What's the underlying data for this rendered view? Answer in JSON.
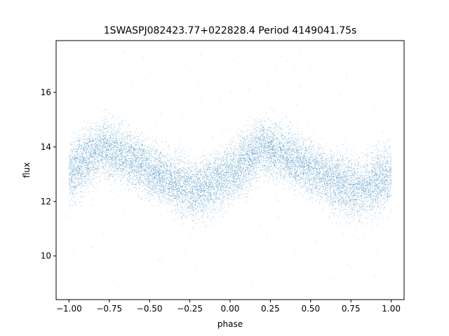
{
  "chart_data": {
    "type": "scatter",
    "title": "1SWASPJ082423.77+022828.4 Period 4149041.75s",
    "xlabel": "phase",
    "ylabel": "flux",
    "xlim": [
      -1.08,
      1.08
    ],
    "ylim": [
      8.4,
      17.9
    ],
    "x_ticks": [
      -1.0,
      -0.75,
      -0.5,
      -0.25,
      0.0,
      0.25,
      0.5,
      0.75,
      1.0
    ],
    "x_tick_labels": [
      "−1.00",
      "−0.75",
      "−0.50",
      "−0.25",
      "0.00",
      "0.25",
      "0.50",
      "0.75",
      "1.00"
    ],
    "y_ticks": [
      10,
      12,
      14,
      16
    ],
    "y_tick_labels": [
      "10",
      "12",
      "14",
      "16"
    ],
    "grid": false,
    "legend": "none",
    "series": [
      {
        "color": "#1f77b4",
        "marker_size": 0.6,
        "n_points_approx": 14000,
        "phase_range": [
          -1.0,
          1.0
        ],
        "period_in_phase": 1.0,
        "profile": {
          "phase": [
            -1.0,
            -0.9,
            -0.8,
            -0.7,
            -0.6,
            -0.5,
            -0.4,
            -0.3,
            -0.2,
            -0.1,
            0.0
          ],
          "mean_flux": [
            13.0,
            13.5,
            14.0,
            13.8,
            13.5,
            13.2,
            12.9,
            12.6,
            12.4,
            12.7,
            13.0
          ],
          "spread": [
            1.1,
            1.1,
            1.0,
            1.0,
            1.0,
            1.0,
            1.0,
            1.1,
            1.1,
            1.1,
            1.0
          ]
        },
        "outlier_flux_range": [
          8.8,
          17.6
        ]
      }
    ]
  }
}
